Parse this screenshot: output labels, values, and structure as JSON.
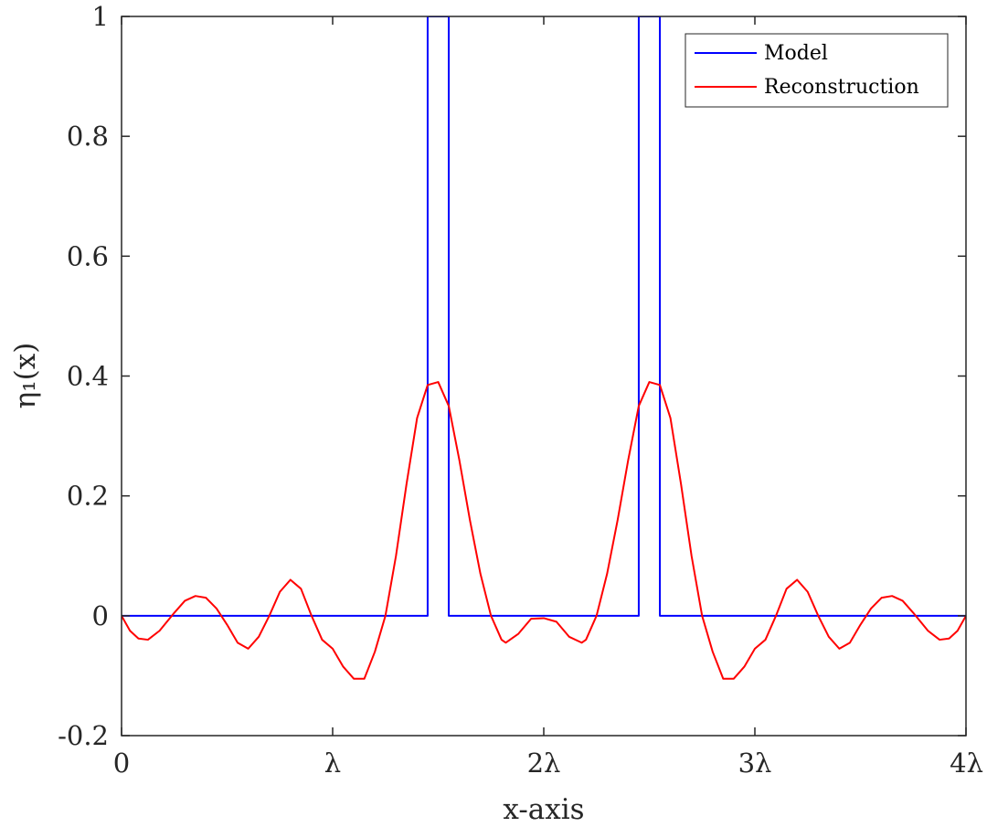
{
  "chart_data": {
    "type": "line",
    "title": "",
    "xlabel": "x-axis",
    "ylabel": "η₁(x)",
    "xlim": [
      0,
      4
    ],
    "ylim": [
      -0.2,
      1
    ],
    "x_unit": "λ",
    "x_ticks": [
      0,
      1,
      2,
      3,
      4
    ],
    "x_tick_labels": [
      "0",
      "λ",
      "2λ",
      "3λ",
      "4λ"
    ],
    "y_ticks": [
      -0.2,
      0,
      0.2,
      0.4,
      0.6,
      0.8,
      1
    ],
    "y_tick_labels": [
      "-0.2",
      "0",
      "0.2",
      "0.4",
      "0.6",
      "0.8",
      "1"
    ],
    "grid": false,
    "legend_position": "top-right",
    "series": [
      {
        "name": "Model",
        "color": "#0000ff",
        "x": [
          0,
          1.45,
          1.45,
          1.55,
          1.55,
          2.45,
          2.45,
          2.55,
          2.55,
          4
        ],
        "y": [
          0,
          0,
          1,
          1,
          0,
          0,
          1,
          1,
          0,
          0
        ]
      },
      {
        "name": "Reconstruction",
        "color": "#ff0000",
        "x": [
          0,
          0.04,
          0.08,
          0.125,
          0.18,
          0.25,
          0.3,
          0.35,
          0.4,
          0.45,
          0.5,
          0.55,
          0.6,
          0.65,
          0.7,
          0.75,
          0.8,
          0.85,
          0.9,
          0.95,
          1.0,
          1.05,
          1.1,
          1.15,
          1.2,
          1.25,
          1.3,
          1.35,
          1.4,
          1.45,
          1.5,
          1.55,
          1.6,
          1.65,
          1.7,
          1.75,
          1.8,
          1.82,
          1.88,
          1.94,
          2.0,
          2.06,
          2.12,
          2.18,
          2.2,
          2.25,
          2.3,
          2.35,
          2.4,
          2.45,
          2.5,
          2.55,
          2.6,
          2.65,
          2.7,
          2.75,
          2.8,
          2.85,
          2.9,
          2.95,
          3.0,
          3.05,
          3.1,
          3.15,
          3.2,
          3.25,
          3.3,
          3.35,
          3.4,
          3.45,
          3.5,
          3.55,
          3.6,
          3.65,
          3.7,
          3.75,
          3.82,
          3.875,
          3.92,
          3.96,
          4.0
        ],
        "y": [
          0,
          -0.025,
          -0.038,
          -0.04,
          -0.025,
          0.005,
          0.025,
          0.033,
          0.03,
          0.012,
          -0.015,
          -0.045,
          -0.055,
          -0.035,
          0.0,
          0.04,
          0.06,
          0.045,
          0.0,
          -0.04,
          -0.055,
          -0.085,
          -0.105,
          -0.105,
          -0.06,
          0.0,
          0.1,
          0.22,
          0.33,
          0.385,
          0.39,
          0.35,
          0.26,
          0.16,
          0.07,
          0.0,
          -0.04,
          -0.045,
          -0.03,
          -0.005,
          -0.004,
          -0.01,
          -0.035,
          -0.045,
          -0.04,
          0.0,
          0.07,
          0.16,
          0.26,
          0.35,
          0.39,
          0.385,
          0.33,
          0.22,
          0.1,
          0.0,
          -0.06,
          -0.105,
          -0.105,
          -0.085,
          -0.055,
          -0.04,
          0.0,
          0.045,
          0.06,
          0.04,
          0.0,
          -0.035,
          -0.055,
          -0.045,
          -0.015,
          0.012,
          0.03,
          0.033,
          0.025,
          0.005,
          -0.025,
          -0.04,
          -0.038,
          -0.025,
          0
        ]
      }
    ]
  }
}
